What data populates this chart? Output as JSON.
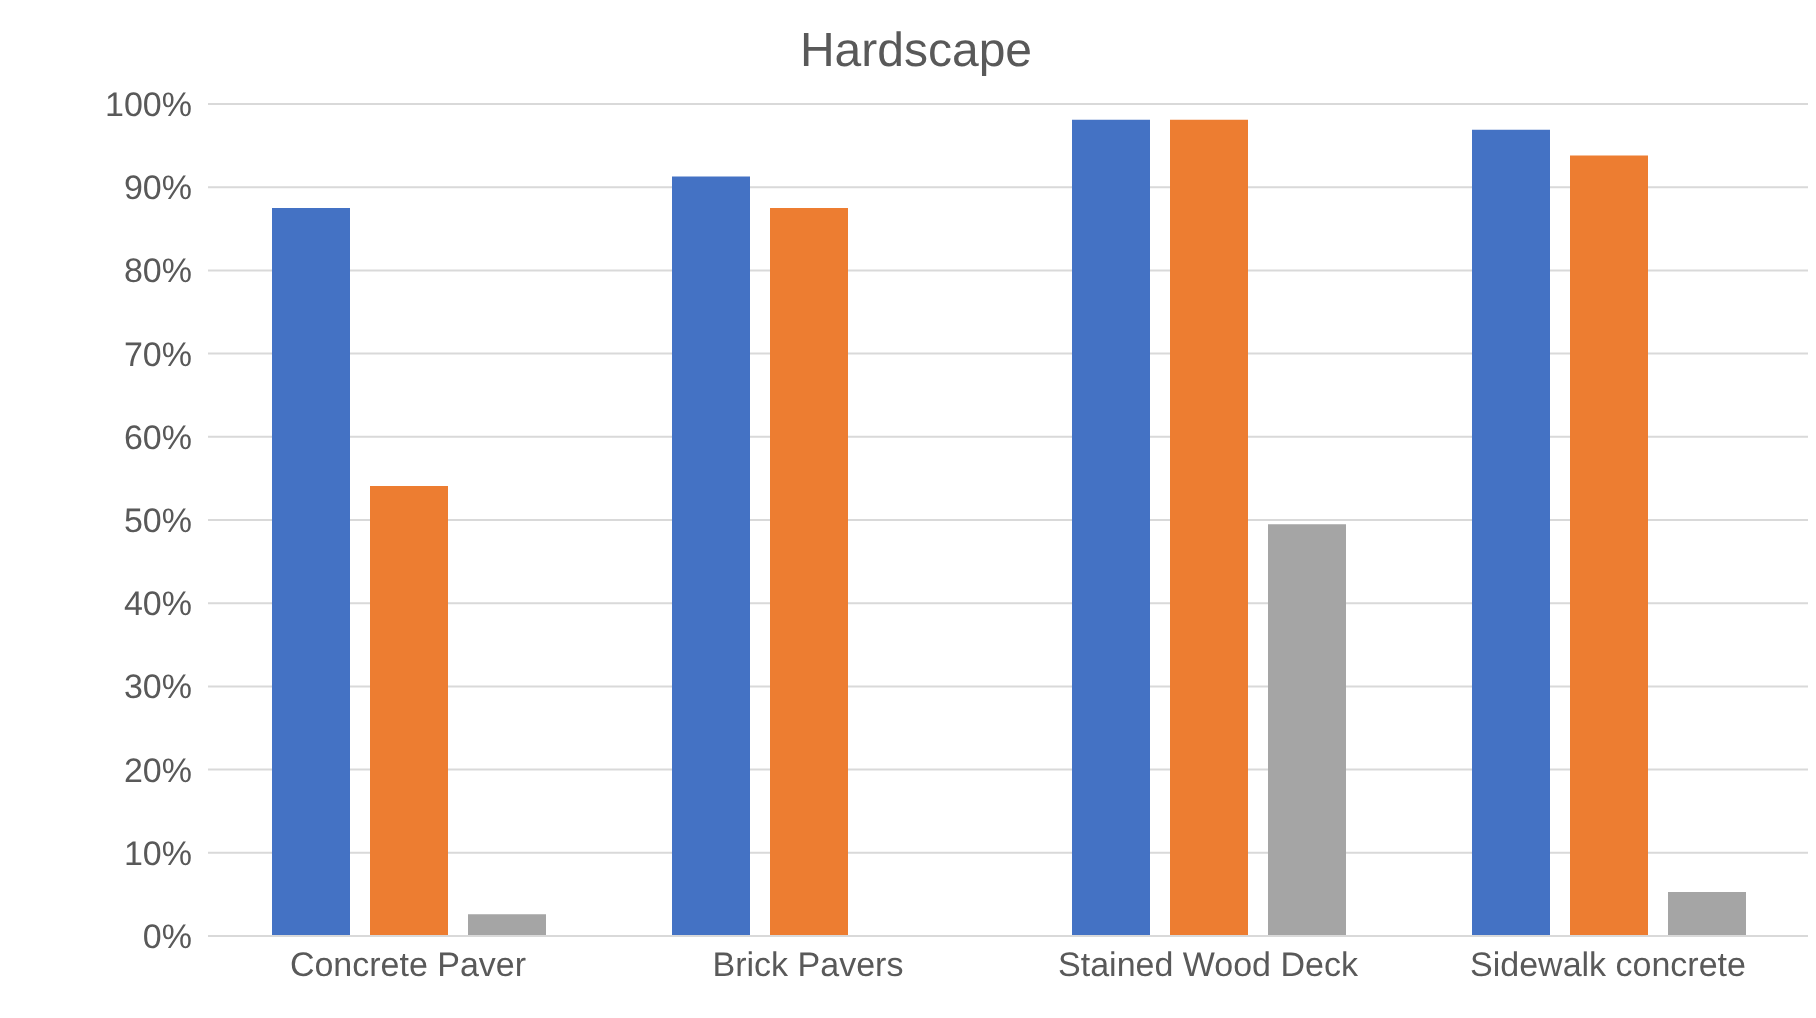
{
  "chart_data": {
    "type": "bar",
    "title": "Hardscape",
    "categories": [
      "Concrete Paver",
      "Brick Pavers",
      "Stained Wood Deck",
      "Sidewalk concrete"
    ],
    "series": [
      {
        "color": "#4472c4",
        "values": [
          87.5,
          91.3,
          98.1,
          96.9
        ]
      },
      {
        "color": "#ed7d31",
        "values": [
          54.1,
          87.5,
          98.1,
          93.8
        ]
      },
      {
        "color": "#a5a5a5",
        "values": [
          2.6,
          0,
          49.5,
          5.3
        ]
      }
    ],
    "ylim": [
      0,
      100
    ],
    "yticks": [
      {
        "value": 0,
        "label": "0%"
      },
      {
        "value": 10,
        "label": "10%"
      },
      {
        "value": 20,
        "label": "20%"
      },
      {
        "value": 30,
        "label": "30%"
      },
      {
        "value": 40,
        "label": "40%"
      },
      {
        "value": 50,
        "label": "50%"
      },
      {
        "value": 60,
        "label": "60%"
      },
      {
        "value": 70,
        "label": "70%"
      },
      {
        "value": 80,
        "label": "80%"
      },
      {
        "value": 90,
        "label": "90%"
      },
      {
        "value": 100,
        "label": "100%"
      }
    ],
    "grid": "y",
    "legend": false
  }
}
